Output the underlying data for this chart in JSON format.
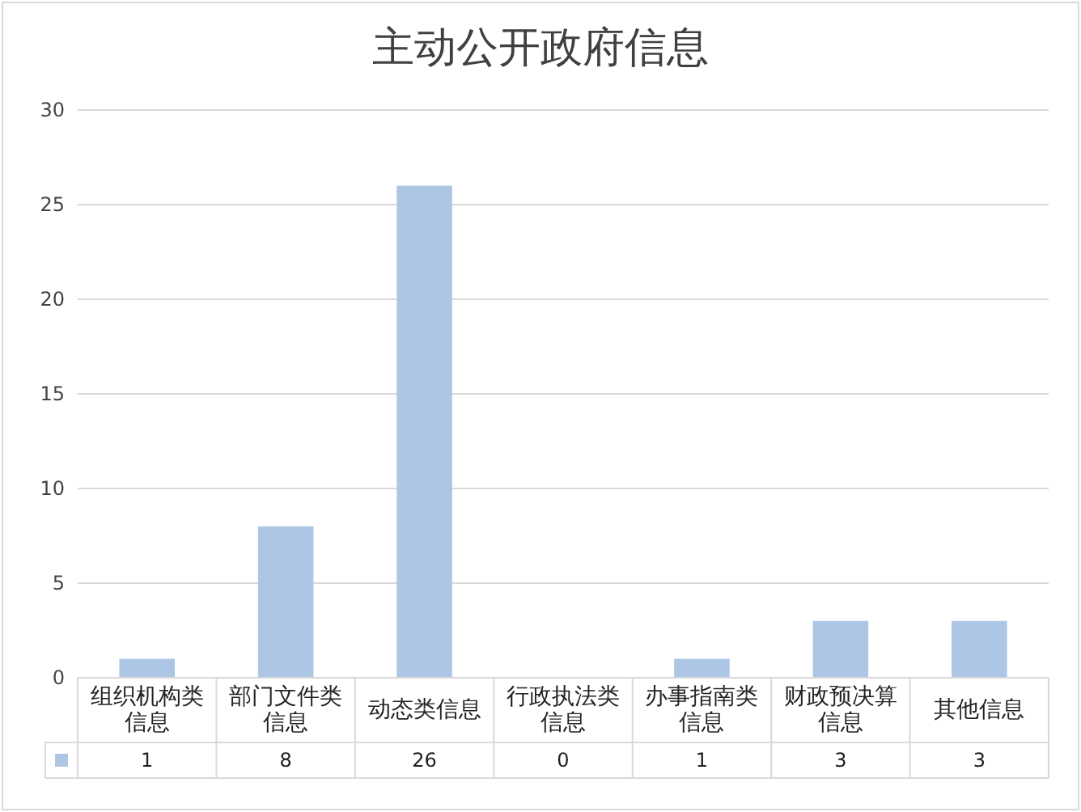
{
  "chart_data": {
    "type": "bar",
    "title": "主动公开政府信息",
    "categories": [
      "组织机构类信息",
      "部门文件类信息",
      "动态类信息",
      "行政执法类信息",
      "办事指南类信息",
      "财政预决算信息",
      "其他信息"
    ],
    "series": [
      {
        "color": "#adc6e6",
        "values": [
          1,
          8,
          26,
          0,
          1,
          3,
          3
        ]
      }
    ],
    "ylim": [
      0,
      30
    ],
    "yticks": [
      0,
      5,
      10,
      15,
      20,
      25,
      30
    ],
    "grid": "y",
    "data_labels": true
  }
}
